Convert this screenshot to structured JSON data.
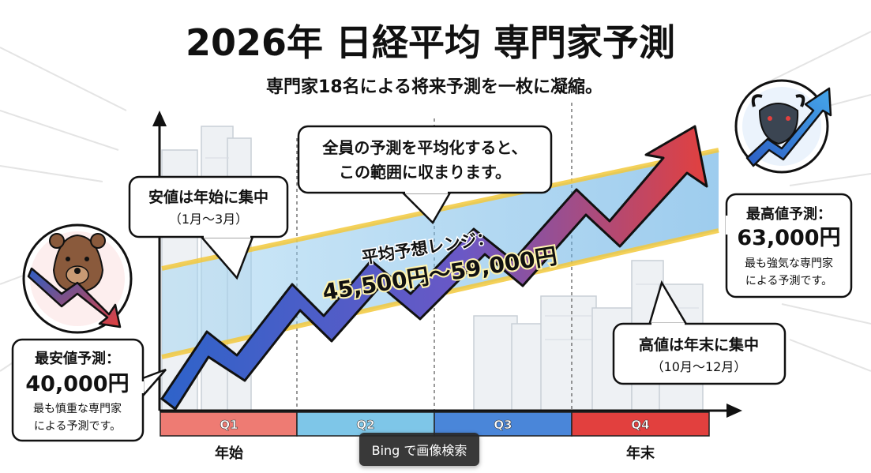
{
  "title": "2026年 日経平均 専門家予測",
  "subtitle": "専門家18名による将来予測を一枚に凝縮。",
  "callouts": {
    "early_low": {
      "line1": "安値は年始に集中",
      "line2": "（1月〜3月）"
    },
    "average": {
      "line1": "全員の予測を平均化すると、",
      "line2": "この範囲に収まります。"
    },
    "late_high": {
      "line1": "高値は年末に集中",
      "line2": "（10月〜12月）"
    }
  },
  "lowest_forecast": {
    "label": "最安値予測：",
    "value": "40,000円",
    "note_line1": "最も慎重な専門家",
    "note_line2": "による予測です。"
  },
  "highest_forecast": {
    "label": "最高値予測：",
    "value": "63,000円",
    "note_line1": "最も強気な専門家",
    "note_line2": "による予測です。"
  },
  "average_range": {
    "label": "平均予想レンジ：",
    "value": "45,500円〜59,000円"
  },
  "quarters": [
    {
      "label": "Q1",
      "color": "#ee7b73"
    },
    {
      "label": "Q2",
      "color": "#7ec6e8"
    },
    {
      "label": "Q3",
      "color": "#4a86d9"
    },
    {
      "label": "Q4",
      "color": "#e2403e"
    }
  ],
  "axis": {
    "start_label": "年始",
    "end_label": "年末"
  },
  "icons": {
    "bear": "bear-down-icon",
    "bull": "bull-up-icon"
  },
  "overlay": {
    "bing_label": "Bing で画像検索"
  }
}
